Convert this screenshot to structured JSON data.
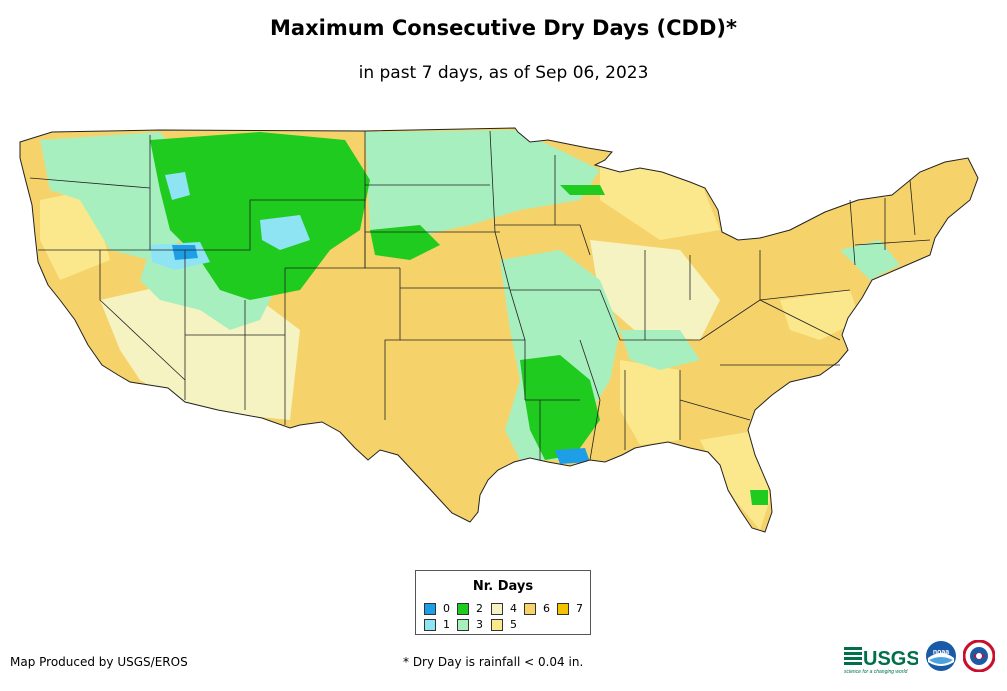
{
  "header": {
    "title": "Maximum Consecutive Dry Days (CDD)*",
    "subtitle": "in past 7 days, as of Sep 06, 2023"
  },
  "legend": {
    "title": "Nr. Days",
    "items": [
      {
        "label": "0",
        "color": "#1f9ee8"
      },
      {
        "label": "1",
        "color": "#8fe4f4"
      },
      {
        "label": "2",
        "color": "#1ecb1e"
      },
      {
        "label": "3",
        "color": "#a8efc0"
      },
      {
        "label": "4",
        "color": "#f6f3c2"
      },
      {
        "label": "5",
        "color": "#fbe88c"
      },
      {
        "label": "6",
        "color": "#f5d36a"
      },
      {
        "label": "7",
        "color": "#f3c200"
      }
    ]
  },
  "footer": {
    "credit": "Map Produced by USGS/EROS",
    "footnote": "* Dry Day is rainfall < 0.04 in."
  },
  "logos": {
    "usgs": {
      "name": "USGS",
      "tagline": "science for a changing world"
    },
    "noaa": {
      "name": "noaa"
    },
    "nws": {
      "name": "National Weather Service"
    }
  }
}
